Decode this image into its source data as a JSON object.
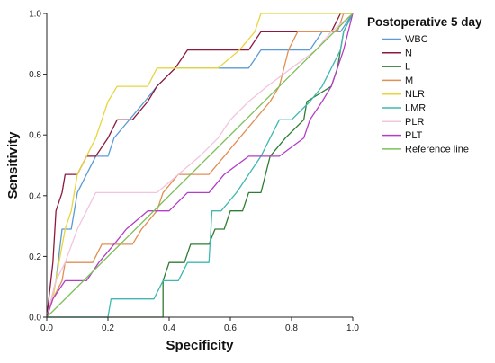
{
  "chart_data": {
    "type": "line",
    "xlabel": "Specificity",
    "ylabel": "Sensitivity",
    "xlim": [
      0,
      1
    ],
    "ylim": [
      0,
      1
    ],
    "x_ticks": [
      "0.0",
      "0.2",
      "0.4",
      "0.6",
      "0.8",
      "1.0"
    ],
    "y_ticks": [
      "0.0",
      "0.2",
      "0.4",
      "0.6",
      "0.8",
      "1.0"
    ],
    "grid": false,
    "legend": {
      "title": "Postoperative 5 day",
      "placement": "right"
    },
    "series": [
      {
        "name": "WBC",
        "color": "#5b9bd5",
        "points": [
          [
            0,
            0
          ],
          [
            0.03,
            0.12
          ],
          [
            0.05,
            0.29
          ],
          [
            0.08,
            0.29
          ],
          [
            0.1,
            0.41
          ],
          [
            0.13,
            0.47
          ],
          [
            0.16,
            0.53
          ],
          [
            0.2,
            0.53
          ],
          [
            0.22,
            0.59
          ],
          [
            0.27,
            0.65
          ],
          [
            0.32,
            0.71
          ],
          [
            0.36,
            0.76
          ],
          [
            0.42,
            0.82
          ],
          [
            0.48,
            0.82
          ],
          [
            0.56,
            0.82
          ],
          [
            0.66,
            0.82
          ],
          [
            0.7,
            0.88
          ],
          [
            0.78,
            0.88
          ],
          [
            0.86,
            0.88
          ],
          [
            0.9,
            0.94
          ],
          [
            0.96,
            0.94
          ],
          [
            1,
            1
          ]
        ]
      },
      {
        "name": "N",
        "color": "#8b1a3c",
        "points": [
          [
            0,
            0
          ],
          [
            0.02,
            0.18
          ],
          [
            0.03,
            0.35
          ],
          [
            0.05,
            0.41
          ],
          [
            0.06,
            0.47
          ],
          [
            0.1,
            0.47
          ],
          [
            0.13,
            0.53
          ],
          [
            0.16,
            0.53
          ],
          [
            0.2,
            0.59
          ],
          [
            0.23,
            0.65
          ],
          [
            0.28,
            0.65
          ],
          [
            0.33,
            0.71
          ],
          [
            0.36,
            0.76
          ],
          [
            0.42,
            0.82
          ],
          [
            0.46,
            0.88
          ],
          [
            0.56,
            0.88
          ],
          [
            0.66,
            0.88
          ],
          [
            0.7,
            0.94
          ],
          [
            0.86,
            0.94
          ],
          [
            0.93,
            0.94
          ],
          [
            0.96,
            1
          ],
          [
            1,
            1
          ]
        ]
      },
      {
        "name": "L",
        "color": "#2e7d32",
        "points": [
          [
            0,
            0
          ],
          [
            0.22,
            0
          ],
          [
            0.38,
            0
          ],
          [
            0.38,
            0.06
          ],
          [
            0.38,
            0.12
          ],
          [
            0.4,
            0.18
          ],
          [
            0.45,
            0.18
          ],
          [
            0.47,
            0.24
          ],
          [
            0.53,
            0.24
          ],
          [
            0.55,
            0.29
          ],
          [
            0.58,
            0.29
          ],
          [
            0.6,
            0.35
          ],
          [
            0.64,
            0.35
          ],
          [
            0.66,
            0.41
          ],
          [
            0.7,
            0.41
          ],
          [
            0.73,
            0.53
          ],
          [
            0.78,
            0.59
          ],
          [
            0.84,
            0.65
          ],
          [
            0.85,
            0.71
          ],
          [
            0.93,
            0.76
          ],
          [
            0.95,
            0.82
          ],
          [
            0.97,
            0.94
          ],
          [
            1,
            1
          ]
        ]
      },
      {
        "name": "M",
        "color": "#e08f55",
        "points": [
          [
            0,
            0
          ],
          [
            0.02,
            0.06
          ],
          [
            0.05,
            0.12
          ],
          [
            0.06,
            0.18
          ],
          [
            0.15,
            0.18
          ],
          [
            0.18,
            0.24
          ],
          [
            0.28,
            0.24
          ],
          [
            0.31,
            0.29
          ],
          [
            0.36,
            0.35
          ],
          [
            0.38,
            0.41
          ],
          [
            0.43,
            0.47
          ],
          [
            0.53,
            0.47
          ],
          [
            0.58,
            0.53
          ],
          [
            0.63,
            0.59
          ],
          [
            0.68,
            0.65
          ],
          [
            0.73,
            0.71
          ],
          [
            0.76,
            0.76
          ],
          [
            0.79,
            0.88
          ],
          [
            0.82,
            0.94
          ],
          [
            0.95,
            0.94
          ],
          [
            0.97,
            1
          ],
          [
            1,
            1
          ]
        ]
      },
      {
        "name": "NLR",
        "color": "#e8d53f",
        "points": [
          [
            0,
            0
          ],
          [
            0.02,
            0.06
          ],
          [
            0.04,
            0.18
          ],
          [
            0.06,
            0.29
          ],
          [
            0.08,
            0.35
          ],
          [
            0.1,
            0.47
          ],
          [
            0.13,
            0.53
          ],
          [
            0.16,
            0.59
          ],
          [
            0.2,
            0.71
          ],
          [
            0.23,
            0.76
          ],
          [
            0.33,
            0.76
          ],
          [
            0.36,
            0.82
          ],
          [
            0.46,
            0.82
          ],
          [
            0.56,
            0.82
          ],
          [
            0.63,
            0.88
          ],
          [
            0.68,
            0.94
          ],
          [
            0.7,
            1
          ],
          [
            0.96,
            1
          ],
          [
            1,
            1
          ]
        ]
      },
      {
        "name": "LMR",
        "color": "#3fb8b2",
        "points": [
          [
            0,
            0
          ],
          [
            0.13,
            0
          ],
          [
            0.2,
            0
          ],
          [
            0.21,
            0.06
          ],
          [
            0.35,
            0.06
          ],
          [
            0.38,
            0.12
          ],
          [
            0.43,
            0.12
          ],
          [
            0.46,
            0.18
          ],
          [
            0.53,
            0.18
          ],
          [
            0.54,
            0.35
          ],
          [
            0.57,
            0.35
          ],
          [
            0.62,
            0.41
          ],
          [
            0.66,
            0.47
          ],
          [
            0.7,
            0.53
          ],
          [
            0.73,
            0.59
          ],
          [
            0.76,
            0.65
          ],
          [
            0.8,
            0.65
          ],
          [
            0.86,
            0.71
          ],
          [
            0.9,
            0.76
          ],
          [
            0.93,
            0.82
          ],
          [
            0.96,
            0.88
          ],
          [
            0.97,
            0.94
          ],
          [
            1,
            1
          ]
        ]
      },
      {
        "name": "PLR",
        "color": "#f2c4de",
        "points": [
          [
            0,
            0
          ],
          [
            0.03,
            0.12
          ],
          [
            0.06,
            0.18
          ],
          [
            0.1,
            0.29
          ],
          [
            0.13,
            0.35
          ],
          [
            0.16,
            0.41
          ],
          [
            0.26,
            0.41
          ],
          [
            0.36,
            0.41
          ],
          [
            0.43,
            0.47
          ],
          [
            0.5,
            0.53
          ],
          [
            0.56,
            0.59
          ],
          [
            0.6,
            0.65
          ],
          [
            0.66,
            0.71
          ],
          [
            0.72,
            0.76
          ],
          [
            0.8,
            0.82
          ],
          [
            0.88,
            0.88
          ],
          [
            0.93,
            0.94
          ],
          [
            1,
            1
          ]
        ]
      },
      {
        "name": "PLT",
        "color": "#b23ec7",
        "points": [
          [
            0,
            0
          ],
          [
            0.02,
            0.06
          ],
          [
            0.06,
            0.12
          ],
          [
            0.13,
            0.12
          ],
          [
            0.17,
            0.18
          ],
          [
            0.22,
            0.24
          ],
          [
            0.26,
            0.29
          ],
          [
            0.33,
            0.35
          ],
          [
            0.4,
            0.35
          ],
          [
            0.46,
            0.41
          ],
          [
            0.53,
            0.41
          ],
          [
            0.58,
            0.47
          ],
          [
            0.66,
            0.53
          ],
          [
            0.76,
            0.53
          ],
          [
            0.84,
            0.59
          ],
          [
            0.86,
            0.65
          ],
          [
            0.9,
            0.71
          ],
          [
            0.93,
            0.76
          ],
          [
            0.95,
            0.82
          ],
          [
            0.97,
            0.88
          ],
          [
            1,
            1
          ]
        ]
      },
      {
        "name": "Reference line",
        "color": "#7dc05a",
        "points": [
          [
            0,
            0
          ],
          [
            1,
            1
          ]
        ]
      }
    ]
  }
}
